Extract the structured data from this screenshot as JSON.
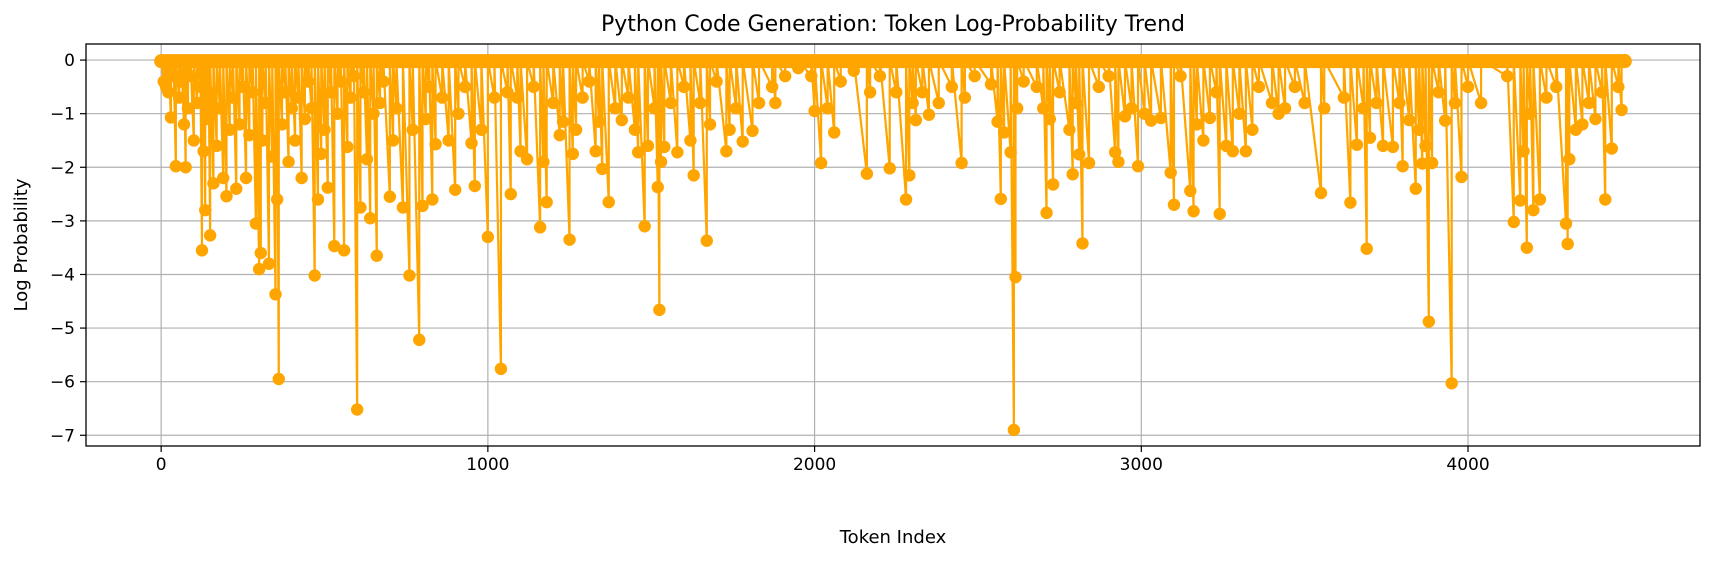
{
  "chart_data": {
    "type": "line",
    "title": "Python Code Generation: Token Log-Probability Trend",
    "xlabel": "Token Index",
    "ylabel": "Log Probability",
    "xlim": [
      -230,
      4710
    ],
    "ylim": [
      -7.2,
      0.3
    ],
    "xticks": [
      0,
      1000,
      2000,
      3000,
      4000
    ],
    "xtick_labels": [
      "0",
      "1000",
      "2000",
      "3000",
      "4000"
    ],
    "yticks": [
      0,
      -1,
      -2,
      -3,
      -4,
      -5,
      -6,
      -7
    ],
    "ytick_labels": [
      "0",
      "−1",
      "−2",
      "−3",
      "−4",
      "−5",
      "−6",
      "−7"
    ],
    "grid": true,
    "marker": "circle",
    "color": "#FFA500",
    "n_tokens": 4480,
    "series": [
      {
        "points": [
          [
            0,
            -0.01
          ],
          [
            8,
            -0.4
          ],
          [
            15,
            -0.5
          ],
          [
            22,
            -0.6
          ],
          [
            30,
            -1.07
          ],
          [
            38,
            -0.3
          ],
          [
            45,
            -1.98
          ],
          [
            55,
            -0.7
          ],
          [
            62,
            -0.4
          ],
          [
            70,
            -1.2
          ],
          [
            75,
            -2.0
          ],
          [
            82,
            -0.9
          ],
          [
            90,
            -0.3
          ],
          [
            100,
            -1.5
          ],
          [
            110,
            -0.8
          ],
          [
            120,
            -0.5
          ],
          [
            125,
            -3.55
          ],
          [
            130,
            -1.7
          ],
          [
            135,
            -2.8
          ],
          [
            140,
            -1.1
          ],
          [
            145,
            -0.6
          ],
          [
            150,
            -3.27
          ],
          [
            160,
            -2.3
          ],
          [
            170,
            -1.6
          ],
          [
            180,
            -0.9
          ],
          [
            190,
            -2.2
          ],
          [
            200,
            -2.54
          ],
          [
            210,
            -1.3
          ],
          [
            220,
            -0.7
          ],
          [
            230,
            -2.4
          ],
          [
            240,
            -1.2
          ],
          [
            250,
            -0.5
          ],
          [
            260,
            -2.2
          ],
          [
            270,
            -1.4
          ],
          [
            280,
            -0.6
          ],
          [
            290,
            -3.05
          ],
          [
            300,
            -3.9
          ],
          [
            305,
            -3.6
          ],
          [
            310,
            -1.5
          ],
          [
            320,
            -0.8
          ],
          [
            330,
            -3.8
          ],
          [
            340,
            -1.8
          ],
          [
            350,
            -4.37
          ],
          [
            355,
            -2.6
          ],
          [
            360,
            -5.95
          ],
          [
            370,
            -1.2
          ],
          [
            380,
            -0.6
          ],
          [
            390,
            -1.9
          ],
          [
            400,
            -0.9
          ],
          [
            410,
            -1.5
          ],
          [
            420,
            -0.7
          ],
          [
            430,
            -2.2
          ],
          [
            440,
            -1.1
          ],
          [
            450,
            -0.4
          ],
          [
            460,
            -0.9
          ],
          [
            470,
            -4.02
          ],
          [
            480,
            -2.6
          ],
          [
            490,
            -1.75
          ],
          [
            500,
            -1.3
          ],
          [
            510,
            -2.38
          ],
          [
            520,
            -0.6
          ],
          [
            530,
            -3.47
          ],
          [
            540,
            -1.0
          ],
          [
            550,
            -0.4
          ],
          [
            560,
            -3.55
          ],
          [
            570,
            -1.62
          ],
          [
            580,
            -0.7
          ],
          [
            590,
            -0.3
          ],
          [
            600,
            -6.52
          ],
          [
            610,
            -2.75
          ],
          [
            620,
            -0.6
          ],
          [
            630,
            -1.85
          ],
          [
            640,
            -2.95
          ],
          [
            650,
            -1.0
          ],
          [
            660,
            -3.65
          ],
          [
            670,
            -0.8
          ],
          [
            680,
            -0.4
          ],
          [
            700,
            -2.55
          ],
          [
            710,
            -1.5
          ],
          [
            720,
            -0.9
          ],
          [
            740,
            -2.75
          ],
          [
            760,
            -4.02
          ],
          [
            770,
            -1.3
          ],
          [
            790,
            -5.22
          ],
          [
            800,
            -2.72
          ],
          [
            810,
            -1.1
          ],
          [
            820,
            -0.5
          ],
          [
            830,
            -2.6
          ],
          [
            840,
            -1.57
          ],
          [
            860,
            -0.7
          ],
          [
            880,
            -1.5
          ],
          [
            900,
            -2.42
          ],
          [
            910,
            -1.0
          ],
          [
            930,
            -0.5
          ],
          [
            950,
            -1.55
          ],
          [
            960,
            -2.35
          ],
          [
            980,
            -1.3
          ],
          [
            1000,
            -3.3
          ],
          [
            1020,
            -0.7
          ],
          [
            1040,
            -5.76
          ],
          [
            1060,
            -0.6
          ],
          [
            1070,
            -2.5
          ],
          [
            1090,
            -0.7
          ],
          [
            1100,
            -1.7
          ],
          [
            1120,
            -1.85
          ],
          [
            1140,
            -0.5
          ],
          [
            1160,
            -3.12
          ],
          [
            1170,
            -1.9
          ],
          [
            1180,
            -2.65
          ],
          [
            1200,
            -0.8
          ],
          [
            1220,
            -1.4
          ],
          [
            1230,
            -1.15
          ],
          [
            1250,
            -3.35
          ],
          [
            1260,
            -1.75
          ],
          [
            1270,
            -1.3
          ],
          [
            1290,
            -0.7
          ],
          [
            1310,
            -0.4
          ],
          [
            1330,
            -1.7
          ],
          [
            1340,
            -1.15
          ],
          [
            1350,
            -2.03
          ],
          [
            1370,
            -2.65
          ],
          [
            1390,
            -0.9
          ],
          [
            1410,
            -1.12
          ],
          [
            1430,
            -0.7
          ],
          [
            1450,
            -1.3
          ],
          [
            1460,
            -1.72
          ],
          [
            1480,
            -3.1
          ],
          [
            1490,
            -1.6
          ],
          [
            1510,
            -0.9
          ],
          [
            1520,
            -2.37
          ],
          [
            1525,
            -4.66
          ],
          [
            1530,
            -1.9
          ],
          [
            1540,
            -1.62
          ],
          [
            1560,
            -0.8
          ],
          [
            1580,
            -1.72
          ],
          [
            1600,
            -0.5
          ],
          [
            1620,
            -1.5
          ],
          [
            1630,
            -2.15
          ],
          [
            1650,
            -0.8
          ],
          [
            1670,
            -3.37
          ],
          [
            1680,
            -1.2
          ],
          [
            1700,
            -0.4
          ],
          [
            1730,
            -1.7
          ],
          [
            1740,
            -1.3
          ],
          [
            1760,
            -0.9
          ],
          [
            1780,
            -1.52
          ],
          [
            1810,
            -1.32
          ],
          [
            1830,
            -0.8
          ],
          [
            1870,
            -0.5
          ],
          [
            1880,
            -0.8
          ],
          [
            1910,
            -0.3
          ],
          [
            1950,
            -0.15
          ],
          [
            1990,
            -0.3
          ],
          [
            2000,
            -0.95
          ],
          [
            2020,
            -1.92
          ],
          [
            2040,
            -0.9
          ],
          [
            2060,
            -1.35
          ],
          [
            2080,
            -0.4
          ],
          [
            2120,
            -0.2
          ],
          [
            2160,
            -2.12
          ],
          [
            2170,
            -0.6
          ],
          [
            2200,
            -0.3
          ],
          [
            2230,
            -2.02
          ],
          [
            2250,
            -0.6
          ],
          [
            2280,
            -2.6
          ],
          [
            2290,
            -2.15
          ],
          [
            2300,
            -0.8
          ],
          [
            2310,
            -1.12
          ],
          [
            2330,
            -0.6
          ],
          [
            2350,
            -1.02
          ],
          [
            2380,
            -0.8
          ],
          [
            2420,
            -0.5
          ],
          [
            2450,
            -1.92
          ],
          [
            2460,
            -0.7
          ],
          [
            2490,
            -0.3
          ],
          [
            2540,
            -0.45
          ],
          [
            2560,
            -1.15
          ],
          [
            2570,
            -2.59
          ],
          [
            2580,
            -1.35
          ],
          [
            2600,
            -1.72
          ],
          [
            2610,
            -6.9
          ],
          [
            2615,
            -4.05
          ],
          [
            2620,
            -0.9
          ],
          [
            2640,
            -0.4
          ],
          [
            2680,
            -0.5
          ],
          [
            2700,
            -0.9
          ],
          [
            2710,
            -2.85
          ],
          [
            2720,
            -1.1
          ],
          [
            2730,
            -2.32
          ],
          [
            2750,
            -0.6
          ],
          [
            2780,
            -1.3
          ],
          [
            2790,
            -2.13
          ],
          [
            2800,
            -0.8
          ],
          [
            2810,
            -1.76
          ],
          [
            2820,
            -3.42
          ],
          [
            2840,
            -1.92
          ],
          [
            2870,
            -0.5
          ],
          [
            2900,
            -0.3
          ],
          [
            2920,
            -1.72
          ],
          [
            2930,
            -1.9
          ],
          [
            2950,
            -1.05
          ],
          [
            2970,
            -0.9
          ],
          [
            2990,
            -1.98
          ],
          [
            3010,
            -1.0
          ],
          [
            3030,
            -1.13
          ],
          [
            3060,
            -1.08
          ],
          [
            3090,
            -2.1
          ],
          [
            3100,
            -2.7
          ],
          [
            3120,
            -0.3
          ],
          [
            3150,
            -2.44
          ],
          [
            3160,
            -2.82
          ],
          [
            3170,
            -1.2
          ],
          [
            3190,
            -1.5
          ],
          [
            3210,
            -1.08
          ],
          [
            3230,
            -0.6
          ],
          [
            3240,
            -2.87
          ],
          [
            3260,
            -1.6
          ],
          [
            3280,
            -1.7
          ],
          [
            3300,
            -1.0
          ],
          [
            3320,
            -1.7
          ],
          [
            3340,
            -1.3
          ],
          [
            3360,
            -0.5
          ],
          [
            3400,
            -0.8
          ],
          [
            3420,
            -1.0
          ],
          [
            3440,
            -0.9
          ],
          [
            3470,
            -0.5
          ],
          [
            3500,
            -0.8
          ],
          [
            3550,
            -2.48
          ],
          [
            3560,
            -0.9
          ],
          [
            3620,
            -0.7
          ],
          [
            3640,
            -2.66
          ],
          [
            3660,
            -1.58
          ],
          [
            3680,
            -0.9
          ],
          [
            3690,
            -3.52
          ],
          [
            3700,
            -1.45
          ],
          [
            3720,
            -0.8
          ],
          [
            3740,
            -1.6
          ],
          [
            3770,
            -1.62
          ],
          [
            3790,
            -0.8
          ],
          [
            3800,
            -1.98
          ],
          [
            3820,
            -1.12
          ],
          [
            3840,
            -2.4
          ],
          [
            3850,
            -1.3
          ],
          [
            3860,
            -1.93
          ],
          [
            3870,
            -1.6
          ],
          [
            3880,
            -4.88
          ],
          [
            3890,
            -1.92
          ],
          [
            3910,
            -0.6
          ],
          [
            3930,
            -1.13
          ],
          [
            3950,
            -6.03
          ],
          [
            3960,
            -0.8
          ],
          [
            3980,
            -2.18
          ],
          [
            4000,
            -0.5
          ],
          [
            4040,
            -0.8
          ],
          [
            4120,
            -0.3
          ],
          [
            4140,
            -3.02
          ],
          [
            4160,
            -2.62
          ],
          [
            4170,
            -1.7
          ],
          [
            4180,
            -3.5
          ],
          [
            4190,
            -1.0
          ],
          [
            4200,
            -2.8
          ],
          [
            4220,
            -2.6
          ],
          [
            4240,
            -0.7
          ],
          [
            4270,
            -0.5
          ],
          [
            4300,
            -3.05
          ],
          [
            4305,
            -3.43
          ],
          [
            4310,
            -1.85
          ],
          [
            4330,
            -1.3
          ],
          [
            4350,
            -1.2
          ],
          [
            4370,
            -0.8
          ],
          [
            4390,
            -1.1
          ],
          [
            4410,
            -0.6
          ],
          [
            4420,
            -2.6
          ],
          [
            4440,
            -1.65
          ],
          [
            4460,
            -0.5
          ],
          [
            4470,
            -0.93
          ],
          [
            4480,
            0.0
          ]
        ]
      }
    ]
  }
}
